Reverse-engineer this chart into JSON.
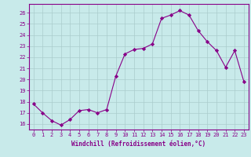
{
  "x": [
    0,
    1,
    2,
    3,
    4,
    5,
    6,
    7,
    8,
    9,
    10,
    11,
    12,
    13,
    14,
    15,
    16,
    17,
    18,
    19,
    20,
    21,
    22,
    23
  ],
  "y": [
    17.8,
    17.0,
    16.3,
    15.9,
    16.4,
    17.2,
    17.3,
    17.0,
    17.3,
    20.3,
    22.3,
    22.7,
    22.8,
    23.2,
    25.5,
    25.8,
    26.2,
    25.8,
    24.4,
    23.4,
    22.6,
    21.1,
    22.6,
    19.8
  ],
  "line_color": "#880088",
  "marker": "D",
  "marker_size": 2.2,
  "bg_color": "#c8eaea",
  "grid_color": "#aacccc",
  "xlabel": "Windchill (Refroidissement éolien,°C)",
  "xlabel_color": "#880088",
  "tick_color": "#880088",
  "ylim": [
    15.5,
    26.8
  ],
  "xlim": [
    -0.5,
    23.5
  ],
  "yticks": [
    16,
    17,
    18,
    19,
    20,
    21,
    22,
    23,
    24,
    25,
    26
  ],
  "xticks": [
    0,
    1,
    2,
    3,
    4,
    5,
    6,
    7,
    8,
    9,
    10,
    11,
    12,
    13,
    14,
    15,
    16,
    17,
    18,
    19,
    20,
    21,
    22,
    23
  ]
}
